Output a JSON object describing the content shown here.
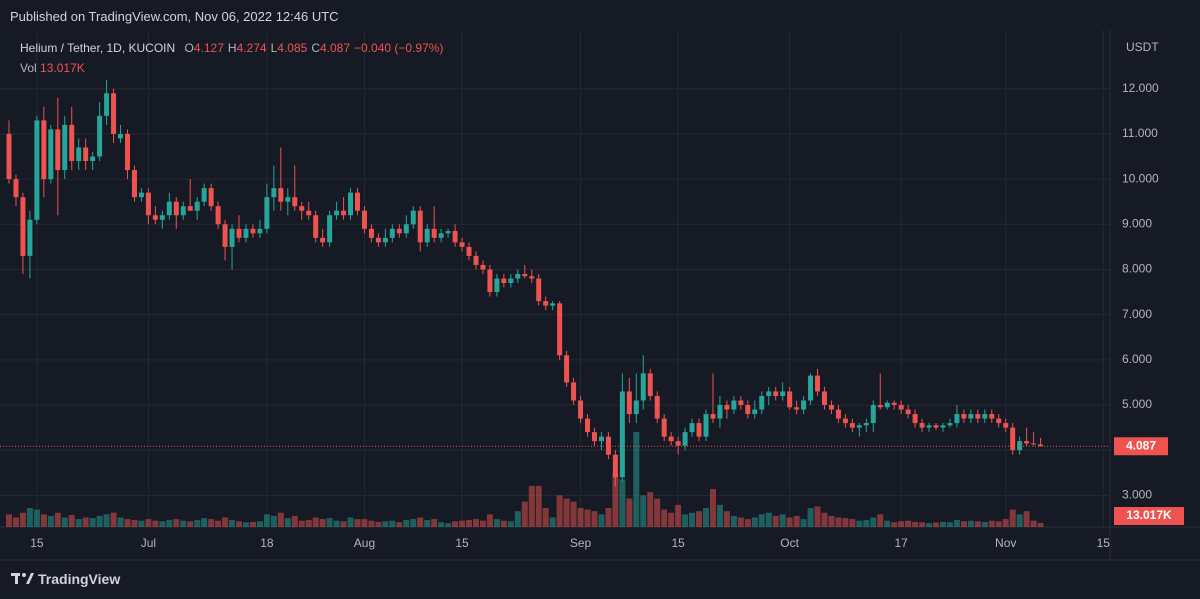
{
  "header": {
    "published": "Published on TradingView.com, Nov 06, 2022 12:46 UTC"
  },
  "footer": {
    "brand": "TradingView"
  },
  "chart_data": {
    "type": "candlestick",
    "title": "Helium / Tether, 1D, KUCOIN",
    "ohlc_labels": [
      "O",
      "H",
      "L",
      "C"
    ],
    "change": "−0.040 (−0.97%)",
    "y_axis_label": "USDT",
    "up_color": "#26a69a",
    "down_color": "#ef5350",
    "grid": true,
    "ylim": [
      2.3,
      13.3
    ],
    "yticks": [
      {
        "value": 3,
        "label": "3.000"
      },
      {
        "value": 4,
        "label": "4.000"
      },
      {
        "value": 5,
        "label": "5.000"
      },
      {
        "value": 6,
        "label": "6.000"
      },
      {
        "value": 7,
        "label": "7.000"
      },
      {
        "value": 8,
        "label": "8.000"
      },
      {
        "value": 9,
        "label": "9.000"
      },
      {
        "value": 10,
        "label": "10.000"
      },
      {
        "value": 11,
        "label": "11.000"
      },
      {
        "value": 12,
        "label": "12.000"
      }
    ],
    "categories": [
      null,
      null,
      null,
      null,
      "15",
      null,
      null,
      null,
      null,
      null,
      null,
      null,
      null,
      null,
      null,
      null,
      null,
      null,
      null,
      null,
      "Jul",
      null,
      null,
      null,
      null,
      null,
      null,
      null,
      null,
      null,
      null,
      null,
      null,
      null,
      null,
      null,
      null,
      "18",
      null,
      null,
      null,
      null,
      null,
      null,
      null,
      null,
      null,
      null,
      null,
      null,
      null,
      "Aug",
      null,
      null,
      null,
      null,
      null,
      null,
      null,
      null,
      null,
      null,
      null,
      null,
      null,
      "15",
      null,
      null,
      null,
      null,
      null,
      null,
      null,
      null,
      null,
      null,
      null,
      null,
      null,
      null,
      null,
      null,
      "Sep",
      null,
      null,
      null,
      null,
      null,
      null,
      null,
      null,
      null,
      null,
      null,
      null,
      null,
      "15",
      null,
      null,
      null,
      null,
      null,
      null,
      null,
      null,
      null,
      null,
      null,
      null,
      null,
      null,
      null,
      "Oct",
      null,
      null,
      null,
      null,
      null,
      null,
      null,
      null,
      null,
      null,
      null,
      null,
      null,
      null,
      null,
      "17",
      null,
      null,
      null,
      null,
      null,
      null,
      null,
      null,
      null,
      null,
      null,
      null,
      null,
      null,
      "Nov",
      null,
      null,
      null,
      null,
      null,
      null,
      null,
      null,
      null,
      null,
      null,
      null,
      null,
      "15"
    ],
    "open": [
      11.0,
      10.0,
      9.6,
      8.3,
      9.1,
      11.3,
      10.0,
      11.1,
      10.2,
      11.2,
      10.4,
      10.7,
      10.4,
      10.5,
      11.4,
      11.9,
      10.9,
      11.0,
      10.2,
      9.6,
      9.7,
      9.2,
      9.1,
      9.2,
      9.5,
      9.2,
      9.4,
      9.3,
      9.5,
      9.8,
      9.4,
      9.0,
      8.5,
      8.9,
      8.7,
      8.9,
      8.8,
      8.9,
      9.6,
      9.8,
      9.5,
      9.6,
      9.4,
      9.3,
      9.2,
      8.7,
      8.6,
      9.2,
      9.3,
      9.2,
      9.7,
      9.3,
      8.9,
      8.7,
      8.6,
      8.7,
      8.9,
      8.8,
      9.0,
      9.3,
      8.6,
      8.9,
      8.7,
      8.8,
      8.85,
      8.6,
      8.5,
      8.3,
      8.1,
      8.0,
      7.5,
      7.8,
      7.7,
      7.8,
      7.9,
      7.85,
      7.8,
      7.3,
      7.2,
      7.25,
      6.1,
      5.5,
      5.1,
      4.7,
      4.4,
      4.2,
      4.3,
      3.9,
      3.4,
      5.3,
      4.8,
      5.1,
      5.7,
      5.2,
      4.7,
      4.3,
      4.2,
      4.1,
      4.4,
      4.6,
      4.3,
      4.8,
      4.7,
      5.0,
      4.9,
      5.1,
      5.0,
      4.8,
      4.9,
      5.2,
      5.3,
      5.2,
      5.3,
      4.95,
      4.9,
      5.1,
      5.65,
      5.3,
      5.0,
      4.9,
      4.7,
      4.6,
      4.5,
      4.55,
      4.6,
      5.0,
      4.95,
      5.05,
      5.0,
      4.9,
      4.8,
      4.6,
      4.5,
      4.55,
      4.5,
      4.55,
      4.6,
      4.8,
      4.7,
      4.8,
      4.7,
      4.8,
      4.7,
      4.6,
      4.5,
      4.0,
      4.2,
      4.15,
      4.127,
      null,
      null,
      null,
      null,
      null,
      null,
      null,
      null,
      null
    ],
    "high": [
      11.3,
      10.1,
      9.7,
      9.3,
      11.4,
      11.6,
      11.2,
      11.8,
      11.4,
      11.6,
      10.9,
      10.9,
      10.6,
      11.7,
      12.2,
      12.0,
      11.2,
      11.1,
      10.3,
      9.8,
      9.8,
      9.4,
      9.3,
      9.7,
      9.6,
      9.5,
      10.0,
      9.6,
      9.9,
      9.9,
      9.5,
      9.1,
      9.0,
      9.2,
      9.0,
      9.0,
      9.1,
      9.9,
      10.3,
      10.7,
      9.8,
      10.3,
      9.5,
      9.5,
      9.3,
      8.9,
      9.3,
      9.5,
      9.6,
      9.8,
      9.8,
      9.4,
      9.0,
      8.8,
      8.9,
      9.0,
      9.0,
      9.2,
      9.4,
      9.4,
      9.0,
      9.4,
      8.9,
      8.9,
      9.0,
      8.7,
      8.6,
      8.4,
      8.2,
      8.1,
      7.9,
      7.9,
      7.9,
      8.0,
      8.1,
      8.0,
      7.9,
      7.4,
      7.3,
      7.3,
      6.2,
      5.6,
      5.2,
      4.8,
      4.5,
      4.4,
      4.4,
      4.0,
      5.7,
      5.6,
      5.7,
      6.1,
      5.8,
      5.3,
      4.8,
      4.4,
      4.3,
      4.5,
      4.7,
      4.7,
      4.9,
      5.7,
      5.2,
      5.1,
      5.2,
      5.2,
      5.1,
      5.1,
      5.3,
      5.4,
      5.4,
      5.5,
      5.4,
      5.1,
      5.2,
      5.7,
      5.8,
      5.4,
      5.1,
      5.0,
      4.8,
      4.7,
      4.6,
      4.7,
      5.1,
      5.7,
      5.1,
      5.1,
      5.1,
      5.0,
      4.9,
      4.7,
      4.6,
      4.6,
      4.6,
      4.7,
      5.0,
      4.9,
      4.9,
      4.9,
      4.9,
      4.9,
      4.8,
      4.7,
      4.6,
      4.3,
      4.5,
      4.4,
      4.274,
      null,
      null,
      null,
      null,
      null,
      null,
      null,
      null,
      null
    ],
    "low": [
      9.9,
      9.4,
      7.9,
      7.8,
      9.0,
      9.6,
      9.9,
      9.2,
      10.0,
      10.2,
      10.2,
      10.2,
      10.2,
      10.4,
      11.2,
      10.8,
      10.8,
      10.0,
      9.5,
      9.5,
      9.0,
      9.0,
      8.9,
      9.1,
      8.9,
      9.1,
      9.3,
      9.1,
      9.4,
      9.3,
      8.9,
      8.2,
      8.0,
      8.6,
      8.6,
      8.7,
      8.7,
      8.8,
      9.3,
      9.3,
      9.2,
      9.3,
      9.1,
      9.1,
      8.6,
      8.5,
      8.5,
      9.1,
      9.1,
      9.1,
      9.2,
      8.8,
      8.6,
      8.5,
      8.5,
      8.6,
      8.7,
      8.7,
      8.9,
      8.4,
      8.5,
      8.6,
      8.6,
      8.7,
      8.5,
      8.4,
      8.2,
      8.0,
      7.9,
      7.4,
      7.4,
      7.6,
      7.6,
      7.7,
      7.8,
      7.7,
      7.2,
      7.1,
      7.1,
      6.0,
      5.4,
      5.0,
      4.6,
      4.3,
      4.1,
      4.0,
      3.8,
      3.2,
      3.3,
      4.6,
      4.6,
      4.9,
      5.1,
      4.6,
      4.2,
      4.1,
      3.9,
      4.0,
      4.3,
      4.2,
      4.2,
      4.6,
      4.5,
      4.7,
      4.8,
      4.9,
      4.7,
      4.7,
      4.8,
      5.0,
      5.1,
      5.1,
      4.9,
      4.8,
      4.8,
      5.0,
      5.2,
      4.9,
      4.8,
      4.6,
      4.5,
      4.4,
      4.3,
      4.4,
      4.4,
      4.9,
      4.9,
      4.9,
      4.8,
      4.7,
      4.5,
      4.4,
      4.4,
      4.45,
      4.4,
      4.5,
      4.5,
      4.6,
      4.6,
      4.6,
      4.6,
      4.6,
      4.5,
      4.4,
      3.9,
      3.9,
      4.1,
      4.1,
      4.085,
      null,
      null,
      null,
      null,
      null,
      null,
      null,
      null,
      null
    ],
    "close": [
      10.0,
      9.6,
      8.3,
      9.1,
      11.3,
      10.0,
      11.1,
      10.2,
      11.2,
      10.4,
      10.7,
      10.4,
      10.5,
      11.4,
      11.9,
      11.0,
      11.0,
      10.2,
      9.6,
      9.7,
      9.2,
      9.1,
      9.2,
      9.5,
      9.2,
      9.4,
      9.3,
      9.5,
      9.8,
      9.4,
      9.0,
      8.5,
      8.9,
      8.7,
      8.9,
      8.8,
      8.9,
      9.6,
      9.8,
      9.5,
      9.6,
      9.4,
      9.3,
      9.2,
      8.7,
      8.6,
      9.2,
      9.3,
      9.2,
      9.7,
      9.3,
      8.9,
      8.7,
      8.6,
      8.7,
      8.9,
      8.8,
      9.0,
      9.3,
      8.6,
      8.9,
      8.7,
      8.8,
      8.85,
      8.6,
      8.5,
      8.3,
      8.1,
      8.0,
      7.5,
      7.8,
      7.7,
      7.8,
      7.9,
      7.85,
      7.8,
      7.3,
      7.2,
      7.25,
      6.1,
      5.5,
      5.1,
      4.7,
      4.4,
      4.2,
      4.3,
      3.9,
      3.4,
      5.3,
      4.8,
      5.1,
      5.7,
      5.2,
      4.7,
      4.3,
      4.2,
      4.1,
      4.4,
      4.6,
      4.3,
      4.8,
      4.7,
      5.0,
      4.9,
      5.1,
      5.0,
      4.8,
      4.9,
      5.2,
      5.3,
      5.2,
      5.3,
      4.95,
      4.9,
      5.1,
      5.65,
      5.3,
      5.0,
      4.9,
      4.7,
      4.6,
      4.5,
      4.55,
      4.6,
      5.0,
      4.95,
      5.05,
      5.0,
      4.9,
      4.8,
      4.6,
      4.5,
      4.55,
      4.5,
      4.55,
      4.6,
      4.8,
      4.7,
      4.8,
      4.7,
      4.8,
      4.7,
      4.6,
      4.5,
      4.0,
      4.2,
      4.15,
      4.13,
      4.087,
      null,
      null,
      null,
      null,
      null,
      null,
      null,
      null,
      null
    ],
    "volume": {
      "name": "Vol",
      "values": [
        40000,
        30000,
        45000,
        60000,
        55000,
        40000,
        35000,
        45000,
        30000,
        38000,
        25000,
        30000,
        28000,
        35000,
        40000,
        45000,
        30000,
        25000,
        22000,
        20000,
        25000,
        20000,
        18000,
        22000,
        25000,
        20000,
        18000,
        22000,
        28000,
        25000,
        20000,
        30000,
        22000,
        18000,
        15000,
        16000,
        18000,
        40000,
        35000,
        45000,
        28000,
        35000,
        20000,
        22000,
        30000,
        25000,
        28000,
        20000,
        18000,
        30000,
        25000,
        25000,
        20000,
        16000,
        18000,
        20000,
        15000,
        22000,
        25000,
        30000,
        22000,
        25000,
        15000,
        12000,
        18000,
        20000,
        22000,
        25000,
        20000,
        40000,
        25000,
        20000,
        18000,
        50000,
        80000,
        130000,
        130000,
        60000,
        30000,
        100000,
        90000,
        80000,
        60000,
        55000,
        50000,
        40000,
        60000,
        170000,
        150000,
        90000,
        300000,
        100000,
        110000,
        90000,
        55000,
        45000,
        70000,
        40000,
        45000,
        50000,
        60000,
        120000,
        70000,
        50000,
        35000,
        30000,
        25000,
        30000,
        40000,
        45000,
        35000,
        40000,
        30000,
        35000,
        25000,
        60000,
        65000,
        45000,
        35000,
        30000,
        28000,
        25000,
        20000,
        22000,
        30000,
        40000,
        20000,
        15000,
        18000,
        20000,
        16000,
        15000,
        12000,
        14000,
        16000,
        15000,
        22000,
        18000,
        20000,
        18000,
        16000,
        20000,
        18000,
        25000,
        55000,
        40000,
        50000,
        20000,
        13017,
        null,
        null,
        null,
        null,
        null,
        null,
        null,
        null,
        null
      ],
      "value_labels": [
        null,
        null,
        null,
        null,
        null,
        null,
        null,
        null,
        null,
        null,
        null,
        null,
        null,
        null,
        null,
        null,
        null,
        null,
        null,
        null,
        null,
        null,
        null,
        null,
        null,
        null,
        null,
        null,
        null,
        null,
        null,
        null,
        null,
        null,
        null,
        null,
        null,
        null,
        null,
        null,
        null,
        null,
        null,
        null,
        null,
        null,
        null,
        null,
        null,
        null,
        null,
        null,
        null,
        null,
        null,
        null,
        null,
        null,
        null,
        null,
        null,
        null,
        null,
        null,
        null,
        null,
        null,
        null,
        null,
        null,
        null,
        null,
        null,
        null,
        null,
        null,
        null,
        null,
        null,
        null,
        null,
        null,
        null,
        null,
        null,
        null,
        null,
        null,
        null,
        null,
        null,
        null,
        null,
        null,
        null,
        null,
        null,
        null,
        null,
        null,
        null,
        null,
        null,
        null,
        null,
        null,
        null,
        null,
        null,
        null,
        null,
        null,
        null,
        null,
        null,
        null,
        null,
        null,
        null,
        null,
        null,
        null,
        null,
        null,
        null,
        null,
        null,
        null,
        null,
        null,
        null,
        null,
        null,
        null,
        null,
        null,
        null,
        null,
        null,
        null,
        null,
        null,
        null,
        null,
        null,
        null,
        null,
        null,
        "13.017K",
        null,
        null,
        null,
        null,
        null,
        null,
        null,
        null,
        null
      ]
    }
  }
}
